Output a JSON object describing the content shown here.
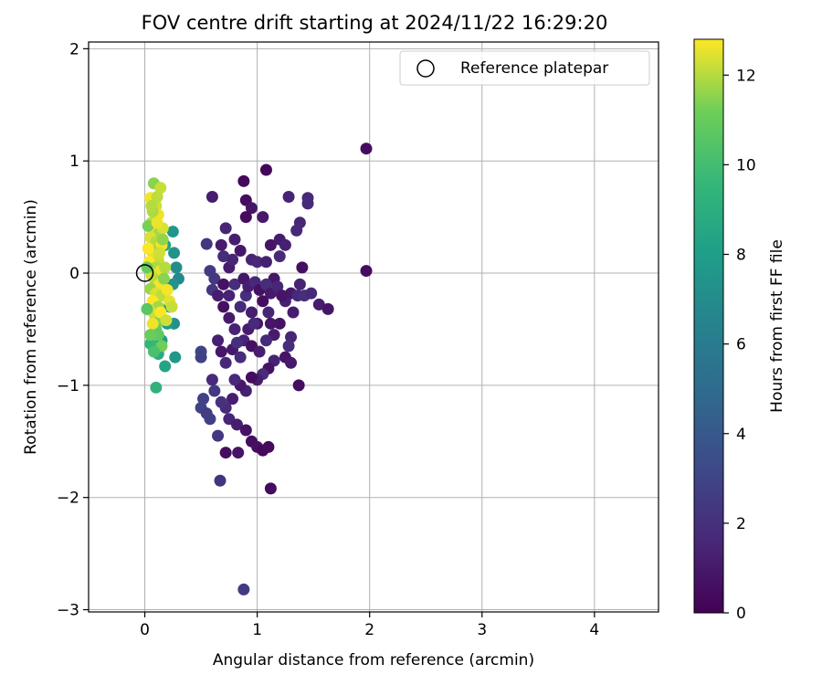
{
  "chart_data": {
    "type": "scatter",
    "title": "FOV centre drift starting at 2024/11/22 16:29:20",
    "xlabel": "Angular distance from reference (arcmin)",
    "ylabel": "Rotation from reference (arcmin)",
    "xlim": [
      -0.5,
      4.57
    ],
    "ylim": [
      -3.02,
      2.06
    ],
    "xticks": [
      0,
      1,
      2,
      3,
      4
    ],
    "yticks": [
      -3,
      -2,
      -1,
      0,
      1,
      2
    ],
    "grid": true,
    "legend": {
      "placement": "top-right",
      "entries": [
        "Reference platepar"
      ]
    },
    "reference_point": {
      "x": 0,
      "y": 0
    },
    "colorbar": {
      "label": "Hours from first FF file",
      "min": 0,
      "max": 12.8,
      "ticks": [
        0,
        2,
        4,
        6,
        8,
        10,
        12
      ],
      "colormap": "viridis"
    },
    "points": [
      [
        1.97,
        1.11,
        0.5
      ],
      [
        1.97,
        0.02,
        0.5
      ],
      [
        0.88,
        0.82,
        0.3
      ],
      [
        1.08,
        0.92,
        0.2
      ],
      [
        0.6,
        0.68,
        1.2
      ],
      [
        0.9,
        0.65,
        0.5
      ],
      [
        0.95,
        0.58,
        0.8
      ],
      [
        1.28,
        0.68,
        1.4
      ],
      [
        1.45,
        0.67,
        1.6
      ],
      [
        1.45,
        0.62,
        1.7
      ],
      [
        0.72,
        0.4,
        1.5
      ],
      [
        0.8,
        0.3,
        1.2
      ],
      [
        0.9,
        0.5,
        0.4
      ],
      [
        1.05,
        0.5,
        1.0
      ],
      [
        1.2,
        0.3,
        1.1
      ],
      [
        1.38,
        0.45,
        1.5
      ],
      [
        1.35,
        0.38,
        1.6
      ],
      [
        1.25,
        0.25,
        1.3
      ],
      [
        0.55,
        0.26,
        2.3
      ],
      [
        0.58,
        0.02,
        2.5
      ],
      [
        0.62,
        -0.05,
        2.4
      ],
      [
        0.6,
        -0.15,
        2.3
      ],
      [
        0.7,
        0.15,
        1.8
      ],
      [
        0.75,
        0.05,
        1.1
      ],
      [
        0.85,
        0.2,
        0.9
      ],
      [
        0.95,
        0.12,
        1.4
      ],
      [
        1.0,
        0.1,
        1.6
      ],
      [
        1.08,
        0.1,
        1.3
      ],
      [
        1.12,
        0.25,
        0.8
      ],
      [
        1.15,
        -0.05,
        0.9
      ],
      [
        0.65,
        -0.2,
        1.2
      ],
      [
        0.7,
        -0.3,
        0.6
      ],
      [
        0.75,
        -0.4,
        1.0
      ],
      [
        0.8,
        -0.5,
        1.4
      ],
      [
        0.85,
        -0.3,
        1.7
      ],
      [
        0.9,
        -0.2,
        1.9
      ],
      [
        0.95,
        -0.35,
        1.2
      ],
      [
        1.0,
        -0.45,
        0.8
      ],
      [
        1.05,
        -0.25,
        0.5
      ],
      [
        1.1,
        -0.35,
        1.5
      ],
      [
        1.15,
        -0.55,
        1.1
      ],
      [
        1.2,
        -0.45,
        0.7
      ],
      [
        1.25,
        -0.25,
        1.3
      ],
      [
        1.3,
        -0.18,
        1.0
      ],
      [
        1.36,
        -0.2,
        1.7
      ],
      [
        1.42,
        -0.2,
        2.0
      ],
      [
        1.48,
        -0.18,
        1.6
      ],
      [
        1.55,
        -0.28,
        1.1
      ],
      [
        1.63,
        -0.32,
        0.8
      ],
      [
        1.38,
        -0.1,
        1.4
      ],
      [
        1.4,
        0.05,
        0.6
      ],
      [
        1.32,
        -0.35,
        1.2
      ],
      [
        1.3,
        -0.57,
        1.5
      ],
      [
        1.28,
        -0.65,
        1.9
      ],
      [
        1.25,
        -0.75,
        0.8
      ],
      [
        1.3,
        -0.8,
        1.0
      ],
      [
        1.37,
        -1.0,
        0.5
      ],
      [
        1.15,
        -0.78,
        1.4
      ],
      [
        1.1,
        -0.85,
        0.7
      ],
      [
        1.05,
        -0.9,
        1.8
      ],
      [
        1.0,
        -0.95,
        1.1
      ],
      [
        0.95,
        -0.93,
        0.5
      ],
      [
        0.9,
        -1.05,
        1.3
      ],
      [
        0.85,
        -1.0,
        0.9
      ],
      [
        0.8,
        -0.95,
        1.6
      ],
      [
        0.78,
        -1.12,
        1.2
      ],
      [
        0.72,
        -1.2,
        1.8
      ],
      [
        0.75,
        -1.3,
        1.5
      ],
      [
        0.68,
        -1.15,
        2.1
      ],
      [
        0.62,
        -1.05,
        2.4
      ],
      [
        0.6,
        -0.95,
        1.7
      ],
      [
        0.65,
        -0.6,
        1.3
      ],
      [
        0.68,
        -0.7,
        0.9
      ],
      [
        0.72,
        -0.8,
        1.6
      ],
      [
        0.78,
        -0.68,
        1.0
      ],
      [
        0.85,
        -0.75,
        1.8
      ],
      [
        0.88,
        -0.6,
        1.4
      ],
      [
        0.95,
        -0.65,
        0.6
      ],
      [
        1.02,
        -0.7,
        1.2
      ],
      [
        1.08,
        -0.6,
        1.7
      ],
      [
        0.5,
        -0.7,
        2.9
      ],
      [
        0.5,
        -0.75,
        2.8
      ],
      [
        0.52,
        -1.12,
        2.8
      ],
      [
        0.5,
        -1.2,
        2.9
      ],
      [
        0.55,
        -1.25,
        2.6
      ],
      [
        0.58,
        -1.3,
        2.7
      ],
      [
        0.65,
        -1.45,
        2.4
      ],
      [
        0.82,
        -1.35,
        1.2
      ],
      [
        0.9,
        -1.4,
        0.7
      ],
      [
        0.95,
        -1.5,
        0.5
      ],
      [
        1.0,
        -1.55,
        0.6
      ],
      [
        1.05,
        -1.58,
        0.3
      ],
      [
        1.1,
        -1.55,
        0.4
      ],
      [
        0.72,
        -1.6,
        0.5
      ],
      [
        0.83,
        -1.6,
        0.8
      ],
      [
        0.67,
        -1.85,
        2.2
      ],
      [
        1.12,
        -1.92,
        0.4
      ],
      [
        0.88,
        -2.82,
        2.5
      ],
      [
        0.7,
        -0.1,
        0.7
      ],
      [
        0.75,
        -0.2,
        1.4
      ],
      [
        0.8,
        -0.1,
        1.9
      ],
      [
        0.88,
        -0.05,
        0.9
      ],
      [
        0.92,
        -0.12,
        1.2
      ],
      [
        0.98,
        -0.08,
        1.6
      ],
      [
        1.02,
        -0.15,
        0.6
      ],
      [
        1.08,
        -0.1,
        1.9
      ],
      [
        1.12,
        -0.18,
        1.0
      ],
      [
        1.18,
        -0.12,
        1.5
      ],
      [
        1.22,
        -0.2,
        0.8
      ],
      [
        1.2,
        0.15,
        1.7
      ],
      [
        0.68,
        0.25,
        1.1
      ],
      [
        0.78,
        0.12,
        1.5
      ],
      [
        0.82,
        -0.62,
        2.0
      ],
      [
        0.92,
        -0.5,
        1.1
      ],
      [
        0.97,
        -0.45,
        1.7
      ],
      [
        1.12,
        -0.45,
        0.9
      ],
      [
        0.25,
        0.37,
        7.6
      ],
      [
        0.26,
        0.18,
        7.3
      ],
      [
        0.28,
        0.05,
        7.0
      ],
      [
        0.3,
        -0.05,
        6.8
      ],
      [
        0.25,
        -0.1,
        7.4
      ],
      [
        0.22,
        -0.3,
        7.9
      ],
      [
        0.26,
        -0.45,
        7.2
      ],
      [
        0.27,
        -0.75,
        7.6
      ],
      [
        0.18,
        -0.83,
        8.4
      ],
      [
        0.1,
        -1.02,
        9.3
      ],
      [
        0.05,
        -0.63,
        9.5
      ],
      [
        0.12,
        -0.72,
        8.8
      ],
      [
        0.15,
        -0.6,
        8.0
      ],
      [
        0.08,
        -0.45,
        9.7
      ],
      [
        0.2,
        -0.45,
        7.9
      ],
      [
        0.18,
        0.25,
        8.2
      ],
      [
        0.08,
        0.8,
        11.5
      ],
      [
        0.14,
        0.76,
        12.2
      ],
      [
        0.05,
        0.67,
        12.7
      ],
      [
        0.1,
        0.6,
        12.3
      ],
      [
        0.12,
        0.52,
        12.6
      ],
      [
        0.06,
        0.45,
        12.1
      ],
      [
        0.08,
        0.38,
        12.8
      ],
      [
        0.12,
        0.35,
        11.8
      ],
      [
        0.05,
        0.32,
        12.4
      ],
      [
        0.1,
        0.28,
        12.0
      ],
      [
        0.15,
        0.25,
        12.7
      ],
      [
        0.06,
        0.2,
        11.6
      ],
      [
        0.08,
        0.15,
        12.5
      ],
      [
        0.12,
        0.12,
        12.2
      ],
      [
        0.04,
        0.1,
        12.8
      ],
      [
        0.1,
        0.05,
        11.9
      ],
      [
        0.14,
        0.02,
        12.6
      ],
      [
        0.06,
        -0.02,
        12.3
      ],
      [
        0.09,
        -0.06,
        12.0
      ],
      [
        0.13,
        -0.1,
        12.7
      ],
      [
        0.05,
        -0.14,
        11.7
      ],
      [
        0.1,
        -0.18,
        12.4
      ],
      [
        0.15,
        -0.2,
        12.1
      ],
      [
        0.07,
        -0.25,
        12.8
      ],
      [
        0.12,
        -0.3,
        11.8
      ],
      [
        0.04,
        -0.33,
        12.5
      ],
      [
        0.09,
        -0.38,
        12.2
      ],
      [
        0.14,
        -0.42,
        11.4
      ],
      [
        0.1,
        -0.5,
        11.0
      ],
      [
        0.12,
        -0.55,
        10.8
      ],
      [
        0.15,
        -0.65,
        11.2
      ],
      [
        0.22,
        -0.25,
        12.5
      ],
      [
        0.24,
        -0.3,
        12.2
      ],
      [
        0.2,
        -0.15,
        12.7
      ],
      [
        0.18,
        0.05,
        12.0
      ],
      [
        0.16,
        0.4,
        12.4
      ],
      [
        0.17,
        -0.05,
        11.5
      ],
      [
        0.03,
        0.42,
        11.3
      ],
      [
        0.02,
        0.05,
        11.0
      ],
      [
        0.02,
        -0.32,
        10.6
      ],
      [
        0.08,
        -0.7,
        10.2
      ],
      [
        0.07,
        0.55,
        11.9
      ],
      [
        0.11,
        0.45,
        12.6
      ],
      [
        0.13,
        0.18,
        12.3
      ],
      [
        0.07,
        -0.45,
        12.6
      ],
      [
        0.11,
        0.68,
        12.1
      ],
      [
        0.03,
        0.22,
        12.8
      ],
      [
        0.16,
        0.3,
        11.6
      ],
      [
        0.14,
        -0.35,
        12.9
      ],
      [
        0.05,
        -0.55,
        11.1
      ],
      [
        0.19,
        -0.42,
        12.3
      ],
      [
        0.06,
        0.6,
        12.0
      ]
    ]
  }
}
